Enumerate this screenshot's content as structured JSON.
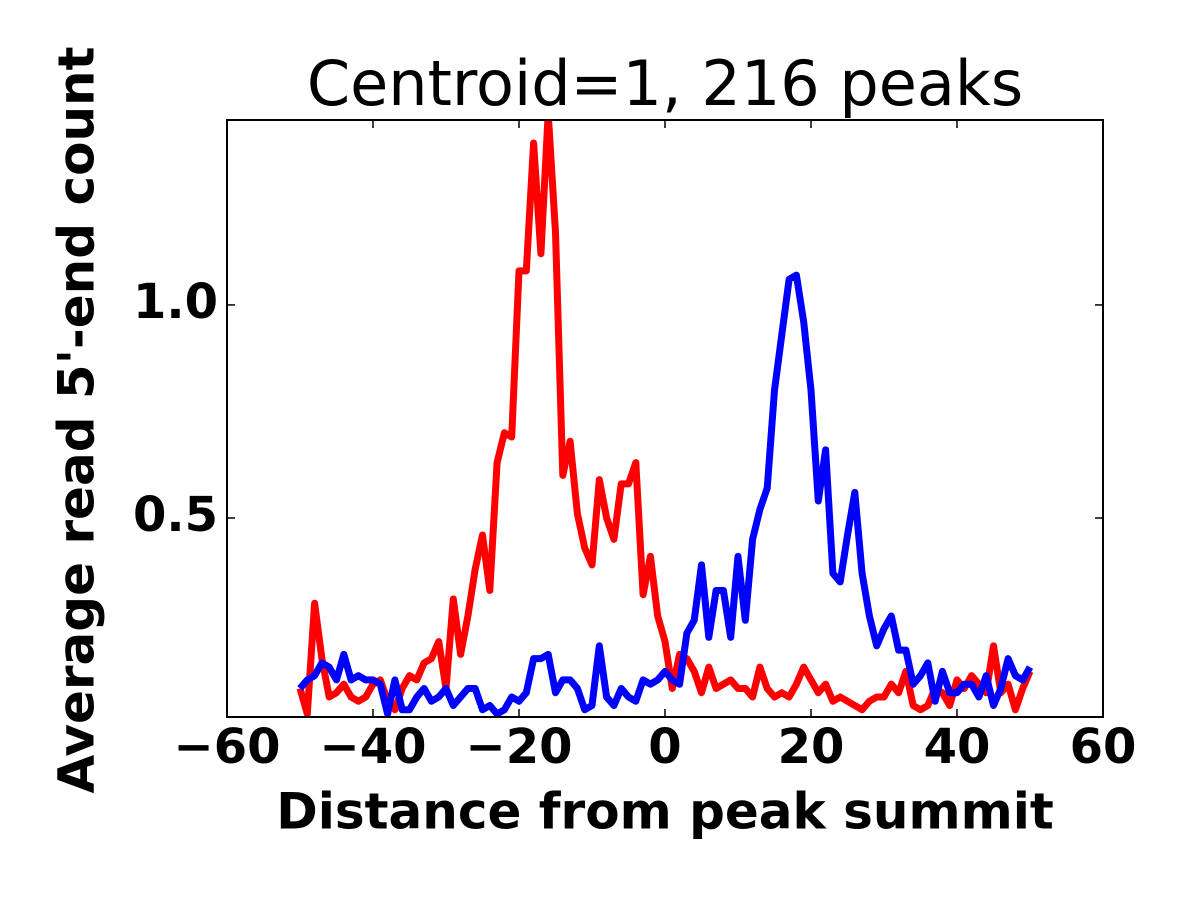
{
  "chart_data": {
    "type": "line",
    "title": "Centroid=1, 216 peaks",
    "x_label": "Distance from peak summit",
    "y_label": "Average read 5'-end count",
    "x": [
      -50,
      -49,
      -48,
      -47,
      -46,
      -45,
      -44,
      -43,
      -42,
      -41,
      -40,
      -39,
      -38,
      -37,
      -36,
      -35,
      -34,
      -33,
      -32,
      -31,
      -30,
      -29,
      -28,
      -27,
      -26,
      -25,
      -24,
      -23,
      -22,
      -21,
      -20,
      -19,
      -18,
      -17,
      -16,
      -15,
      -14,
      -13,
      -12,
      -11,
      -10,
      -9,
      -8,
      -7,
      -6,
      -5,
      -4,
      -3,
      -2,
      -1,
      0,
      1,
      2,
      3,
      4,
      5,
      6,
      7,
      8,
      9,
      10,
      11,
      12,
      13,
      14,
      15,
      16,
      17,
      18,
      19,
      20,
      21,
      22,
      23,
      24,
      25,
      26,
      27,
      28,
      29,
      30,
      31,
      32,
      33,
      34,
      35,
      36,
      37,
      38,
      39,
      40,
      41,
      42,
      43,
      44,
      45,
      46,
      47,
      48,
      49,
      50
    ],
    "series": [
      {
        "color": "#ff0000",
        "values": [
          0.1,
          0.04,
          0.3,
          0.17,
          0.08,
          0.09,
          0.11,
          0.08,
          0.07,
          0.08,
          0.11,
          0.12,
          0.07,
          0.05,
          0.1,
          0.13,
          0.12,
          0.16,
          0.17,
          0.21,
          0.1,
          0.31,
          0.18,
          0.27,
          0.38,
          0.46,
          0.33,
          0.63,
          0.7,
          0.69,
          1.08,
          1.08,
          1.38,
          1.12,
          1.45,
          1.17,
          0.6,
          0.68,
          0.51,
          0.43,
          0.39,
          0.59,
          0.5,
          0.45,
          0.58,
          0.58,
          0.63,
          0.32,
          0.41,
          0.27,
          0.21,
          0.1,
          0.18,
          0.17,
          0.14,
          0.09,
          0.15,
          0.1,
          0.11,
          0.12,
          0.1,
          0.1,
          0.08,
          0.15,
          0.1,
          0.08,
          0.09,
          0.08,
          0.11,
          0.15,
          0.12,
          0.09,
          0.11,
          0.07,
          0.08,
          0.07,
          0.06,
          0.05,
          0.07,
          0.08,
          0.08,
          0.11,
          0.09,
          0.14,
          0.06,
          0.05,
          0.06,
          0.1,
          0.09,
          0.06,
          0.12,
          0.1,
          0.13,
          0.11,
          0.09,
          0.2,
          0.09,
          0.11,
          0.05,
          0.1,
          0.14
        ]
      },
      {
        "color": "#0000ff",
        "values": [
          0.1,
          0.12,
          0.13,
          0.16,
          0.15,
          0.12,
          0.18,
          0.12,
          0.13,
          0.12,
          0.12,
          0.11,
          0.04,
          0.12,
          0.05,
          0.05,
          0.08,
          0.1,
          0.07,
          0.08,
          0.1,
          0.06,
          0.08,
          0.1,
          0.1,
          0.05,
          0.06,
          0.04,
          0.05,
          0.08,
          0.07,
          0.09,
          0.17,
          0.17,
          0.18,
          0.09,
          0.12,
          0.12,
          0.1,
          0.05,
          0.06,
          0.2,
          0.08,
          0.06,
          0.1,
          0.08,
          0.07,
          0.12,
          0.11,
          0.12,
          0.14,
          0.12,
          0.11,
          0.23,
          0.26,
          0.39,
          0.22,
          0.33,
          0.33,
          0.22,
          0.41,
          0.26,
          0.45,
          0.52,
          0.57,
          0.8,
          0.93,
          1.06,
          1.07,
          0.96,
          0.8,
          0.54,
          0.66,
          0.37,
          0.35,
          0.46,
          0.56,
          0.37,
          0.27,
          0.2,
          0.24,
          0.27,
          0.19,
          0.19,
          0.11,
          0.13,
          0.16,
          0.07,
          0.14,
          0.09,
          0.09,
          0.11,
          0.11,
          0.08,
          0.13,
          0.06,
          0.1,
          0.17,
          0.13,
          0.12,
          0.15
        ]
      }
    ],
    "xlim": [
      -60,
      60
    ],
    "xticks": [
      {
        "value": -60,
        "label": "−60"
      },
      {
        "value": -40,
        "label": "−40"
      },
      {
        "value": -20,
        "label": "−20"
      },
      0,
      20,
      40,
      60
    ],
    "ylim": [
      0.033,
      1.434
    ],
    "yticks": [
      0.5,
      {
        "value": 1,
        "label": "1.0"
      }
    ]
  }
}
